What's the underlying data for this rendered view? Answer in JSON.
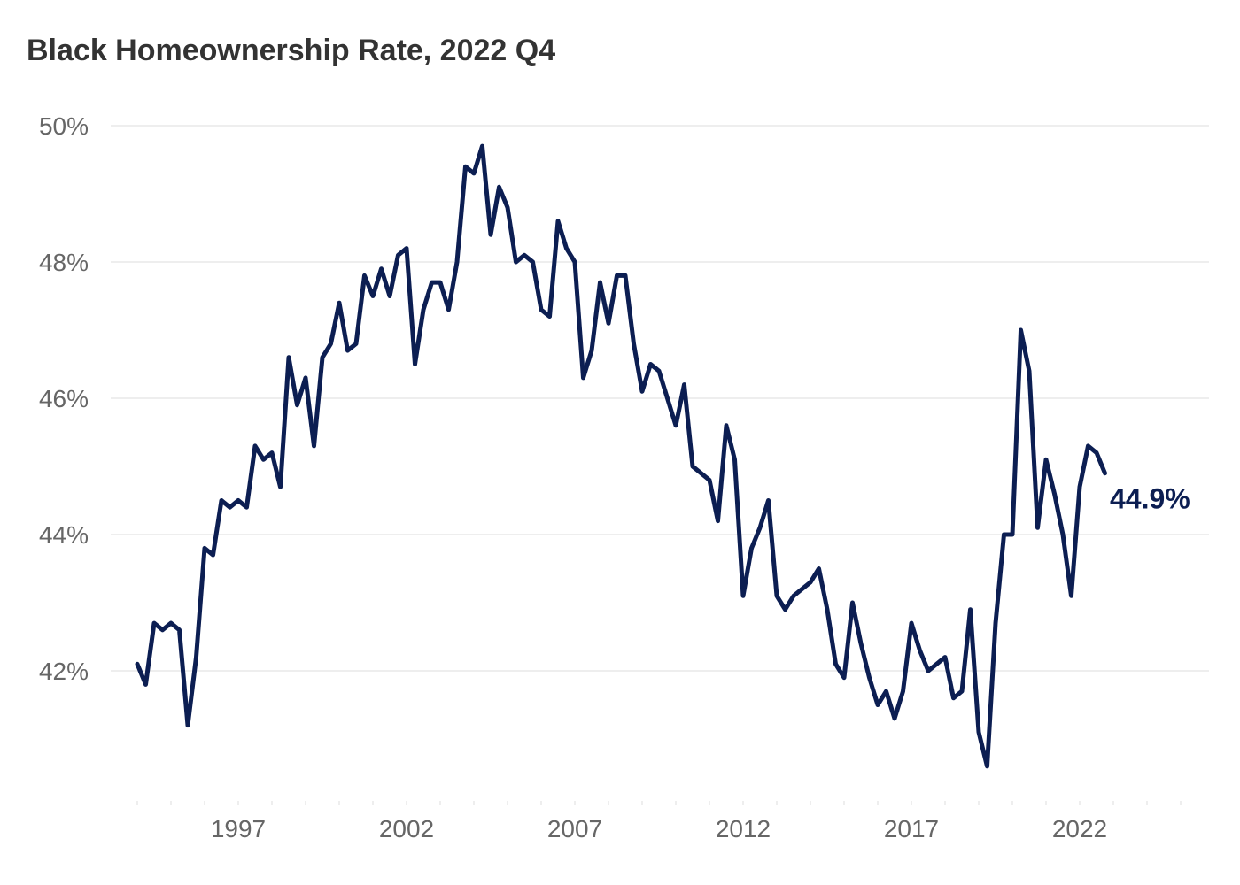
{
  "colors": {
    "line": "#0c1e52",
    "grid": "#e8e8e8",
    "tick_text": "#666666",
    "title": "#333333"
  },
  "chart_data": {
    "type": "line",
    "title": "Black Homeownership Rate, 2022 Q4",
    "xlabel": "",
    "ylabel": "",
    "ylim": [
      40.5,
      50.0
    ],
    "xlim": [
      1994.0,
      2025.5
    ],
    "grid": "horizontal",
    "yticks": [
      42,
      44,
      46,
      48,
      50
    ],
    "ytick_labels": [
      "42%",
      "44%",
      "46%",
      "48%",
      "50%"
    ],
    "xticks": [
      1997,
      2002,
      2007,
      2012,
      2017,
      2022
    ],
    "xtick_labels": [
      "1997",
      "2002",
      "2007",
      "2012",
      "2017",
      "2022"
    ],
    "end_label": "44.9%",
    "series": [
      {
        "start": "1994 Q1",
        "frequency": "quarterly",
        "values": [
          42.1,
          41.8,
          42.7,
          42.6,
          42.7,
          42.6,
          41.2,
          42.2,
          43.8,
          43.7,
          44.5,
          44.4,
          44.5,
          44.4,
          45.3,
          45.1,
          45.2,
          44.7,
          46.6,
          45.9,
          46.3,
          45.3,
          46.6,
          46.8,
          47.4,
          46.7,
          46.8,
          47.8,
          47.5,
          47.9,
          47.5,
          48.1,
          48.2,
          46.5,
          47.3,
          47.7,
          47.7,
          47.3,
          48.0,
          49.4,
          49.3,
          49.7,
          48.4,
          49.1,
          48.8,
          48.0,
          48.1,
          48.0,
          47.3,
          47.2,
          48.6,
          48.2,
          48.0,
          46.3,
          46.7,
          47.7,
          47.1,
          47.8,
          47.8,
          46.8,
          46.1,
          46.5,
          46.4,
          46.0,
          45.6,
          46.2,
          45.0,
          44.9,
          44.8,
          44.2,
          45.6,
          45.1,
          43.1,
          43.8,
          44.1,
          44.5,
          43.1,
          42.9,
          43.1,
          43.2,
          43.3,
          43.5,
          42.9,
          42.1,
          41.9,
          43.0,
          42.4,
          41.9,
          41.5,
          41.7,
          41.3,
          41.7,
          42.7,
          42.3,
          42.0,
          42.1,
          42.2,
          41.6,
          41.7,
          42.9,
          41.1,
          40.6,
          42.7,
          44.0,
          44.0,
          47.0,
          46.4,
          44.1,
          45.1,
          44.6,
          44.0,
          43.1,
          44.7,
          45.3,
          45.2,
          44.9
        ]
      }
    ]
  }
}
